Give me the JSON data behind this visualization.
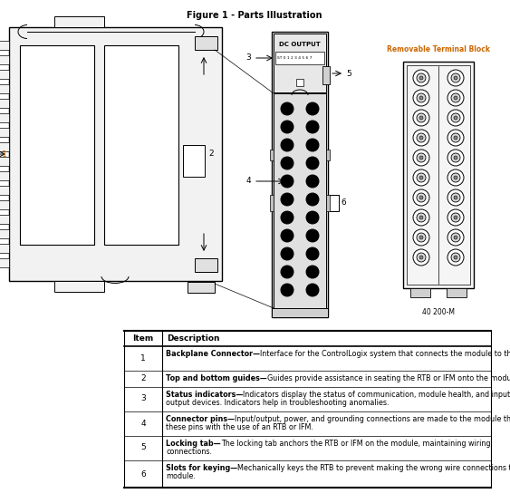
{
  "title": "Figure 1 - Parts Illustration",
  "bg_color": "#ffffff",
  "table_rows": [
    [
      "1",
      "Backplane Connector—Interface for the ControlLogix system that connects the module to the backplane."
    ],
    [
      "2",
      "Top and bottom guides—Guides provide assistance in seating the RTB or IFM onto the module."
    ],
    [
      "3",
      "Status indicators—Indicators display the status of communication, module health, and input/\noutput devices. Indicators help in troubleshooting anomalies."
    ],
    [
      "4",
      "Connector pins—Input/output, power, and grounding connections are made to the module through\nthese pins with the use of an RTB or IFM."
    ],
    [
      "5",
      "Locking tab—The locking tab anchors the RTB or IFM on the module, maintaining wiring\nconnections."
    ],
    [
      "6",
      "Slots for keying—Mechanically keys the RTB to prevent making the wrong wire connections to your\nmodule."
    ]
  ],
  "bold_starts": [
    "Backplane Connector—",
    "Top and bottom guides—",
    "Status indicators—",
    "Connector pins—",
    "Locking tab—",
    "Slots for keying—"
  ],
  "label_color": "#cc6600",
  "removable_tb_label": "Removable Terminal Block",
  "figure_label": "40 200-M"
}
